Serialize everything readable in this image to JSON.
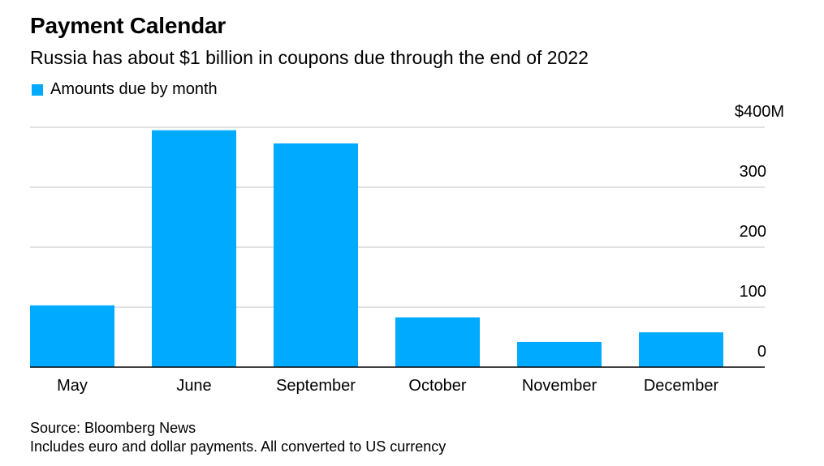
{
  "colors": {
    "bar": "#00aaff",
    "grid": "#d9d9d9",
    "axis": "#000000"
  },
  "chart_data": {
    "type": "bar",
    "title": "Payment Calendar",
    "subtitle": "Russia has about $1 billion in coupons due through the end of 2022",
    "categories": [
      "May",
      "June",
      "September",
      "October",
      "November",
      "December"
    ],
    "series": [
      {
        "name": "Amounts due by month",
        "values": [
          103,
          395,
          373,
          83,
          42,
          58
        ]
      }
    ],
    "ylim": [
      0,
      400
    ],
    "yticks": [
      {
        "value": 0,
        "label": "0"
      },
      {
        "value": 100,
        "label": "100"
      },
      {
        "value": 200,
        "label": "200"
      },
      {
        "value": 300,
        "label": "300"
      },
      {
        "value": 400,
        "label": "$400M"
      }
    ],
    "grid": true,
    "legend_position": "top-left",
    "y_axis_side": "right"
  },
  "footer": {
    "source": "Source: Bloomberg News",
    "note": "Includes euro and dollar payments. All converted to US currency"
  }
}
